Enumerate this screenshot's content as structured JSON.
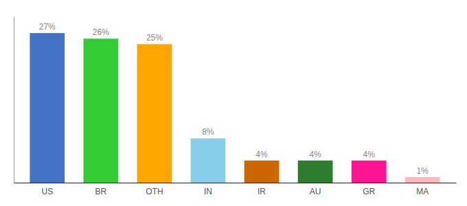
{
  "chart_data": {
    "type": "bar",
    "categories": [
      "US",
      "BR",
      "OTH",
      "IN",
      "IR",
      "AU",
      "GR",
      "MA"
    ],
    "values": [
      27,
      26,
      25,
      8,
      4,
      4,
      4,
      1
    ],
    "value_labels": [
      "27%",
      "26%",
      "25%",
      "8%",
      "4%",
      "4%",
      "4%",
      "1%"
    ],
    "colors": [
      "#4472C4",
      "#33CC33",
      "#FFA500",
      "#87CEEB",
      "#CC6600",
      "#2E7D2E",
      "#FF1493",
      "#FFB6C1"
    ],
    "ylim": [
      0,
      30
    ],
    "data_labels": true,
    "tick_labels": "x"
  }
}
